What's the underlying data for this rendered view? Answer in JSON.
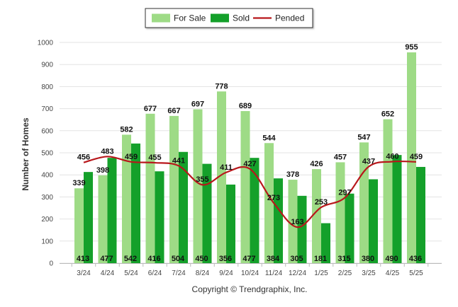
{
  "chart_data": {
    "type": "bar",
    "categories": [
      "3/24",
      "4/24",
      "5/24",
      "6/24",
      "7/24",
      "8/24",
      "9/24",
      "10/24",
      "11/24",
      "12/24",
      "1/25",
      "2/25",
      "3/25",
      "4/25",
      "5/25"
    ],
    "series": [
      {
        "name": "For Sale",
        "type": "bar",
        "color": "#9edb86",
        "values": [
          339,
          398,
          582,
          677,
          667,
          697,
          778,
          689,
          544,
          378,
          426,
          457,
          547,
          652,
          955
        ]
      },
      {
        "name": "Sold",
        "type": "bar",
        "color": "#14a02a",
        "values": [
          413,
          477,
          542,
          416,
          504,
          450,
          356,
          477,
          384,
          305,
          181,
          315,
          380,
          490,
          436
        ]
      },
      {
        "name": "Pended",
        "type": "line",
        "color": "#b8171b",
        "values": [
          456,
          483,
          459,
          455,
          441,
          355,
          411,
          427,
          273,
          163,
          253,
          297,
          437,
          460,
          459
        ]
      }
    ],
    "title": "",
    "xlabel": "",
    "ylabel": "Number of Homes",
    "ylim": [
      0,
      1000
    ],
    "yticks": [
      0,
      100,
      200,
      300,
      400,
      500,
      600,
      700,
      800,
      900,
      1000
    ],
    "grid": true,
    "legend": "top-center"
  },
  "footer": {
    "text": "Copyright © Trendgraphix, Inc."
  }
}
